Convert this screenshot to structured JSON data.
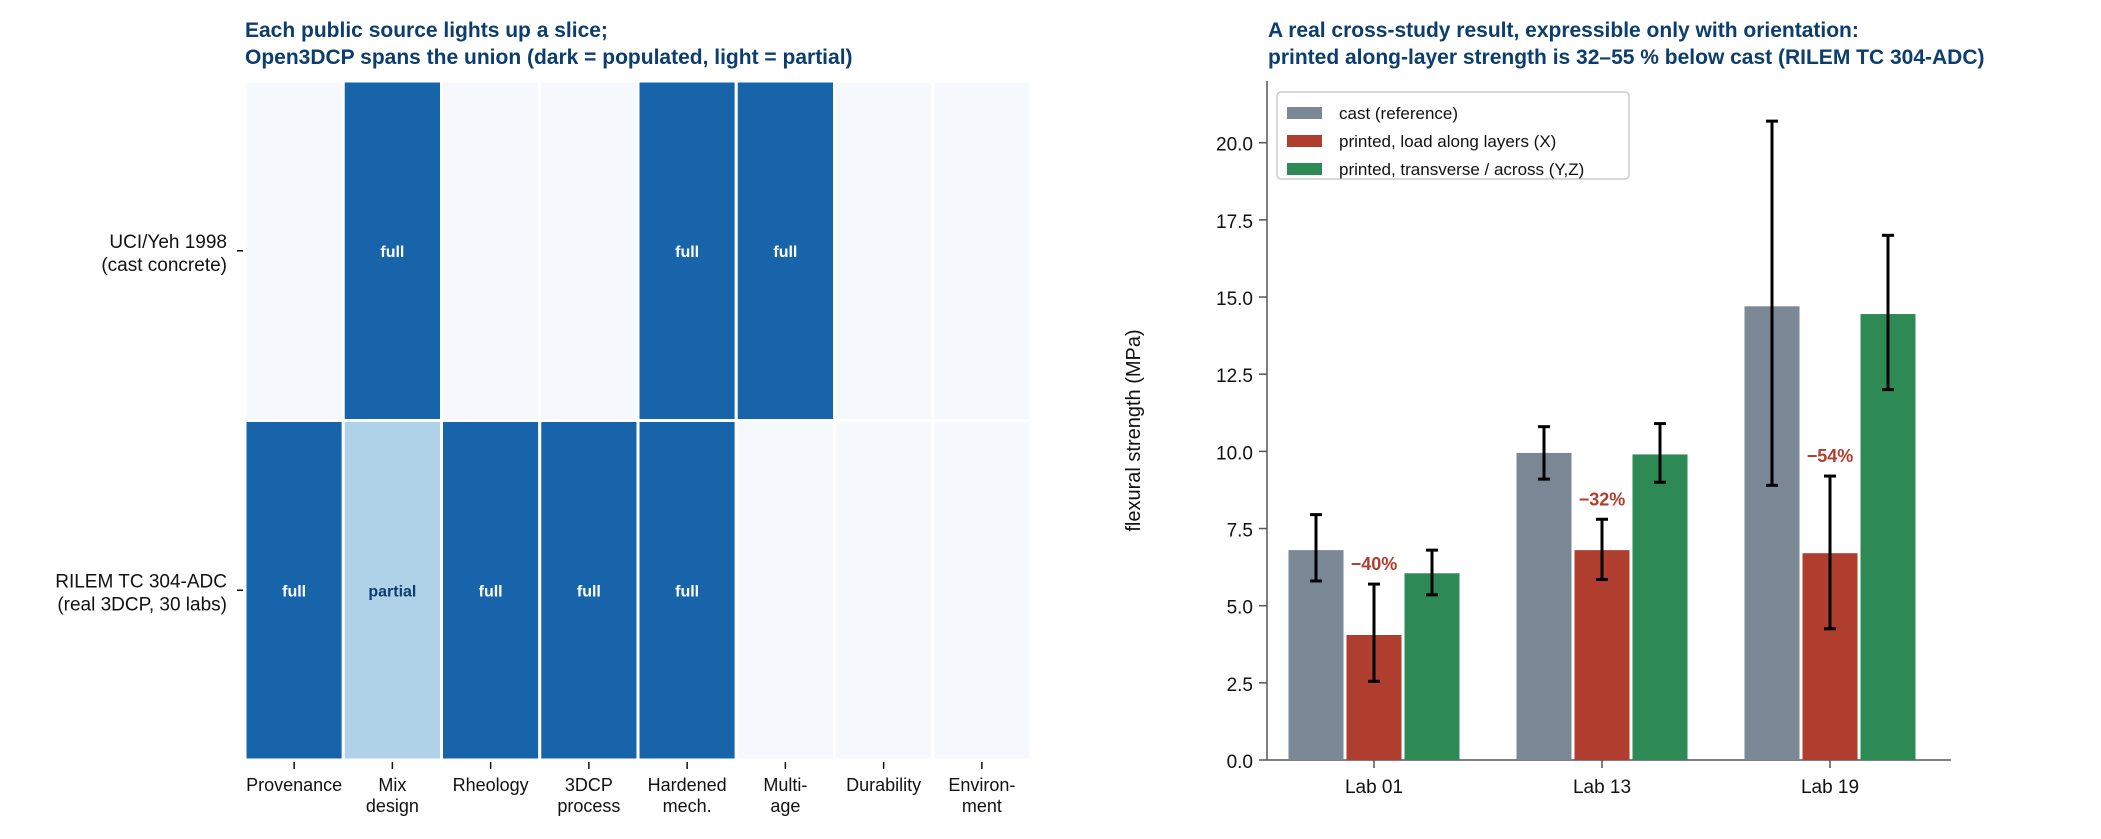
{
  "chart_data": [
    {
      "type": "heatmap",
      "title_lines": [
        "Each public source lights up a slice;",
        "Open3DCP spans the union (dark = populated, light = partial)"
      ],
      "columns": [
        [
          "Provenance"
        ],
        [
          "Mix",
          "design"
        ],
        [
          "Rheology"
        ],
        [
          "3DCP",
          "process"
        ],
        [
          "Hardened",
          "mech."
        ],
        [
          "Multi-",
          "age"
        ],
        [
          "Durability"
        ],
        [
          "Environ-",
          "ment"
        ]
      ],
      "rows": [
        {
          "label": [
            "UCI/Yeh 1998",
            "(cast concrete)"
          ],
          "cells": [
            "",
            "full",
            "",
            "",
            "full",
            "full",
            "",
            ""
          ]
        },
        {
          "label": [
            "RILEM TC 304-ADC",
            "(real 3DCP, 30 labs)"
          ],
          "cells": [
            "full",
            "partial",
            "full",
            "full",
            "full",
            "",
            "",
            ""
          ]
        }
      ],
      "colors": {
        "full": "#1764ab",
        "partial": "#b0d2e8",
        "empty": "#f5f9fe",
        "full_text": "#ffffff",
        "partial_text": "#0b3d6e"
      }
    },
    {
      "type": "bar",
      "title_lines": [
        "A real cross-study result, expressible only with orientation:",
        "printed along-layer strength is 32–55 % below cast (RILEM TC 304-ADC)"
      ],
      "ylabel": "flexural strength (MPa)",
      "ylim": [
        0,
        22
      ],
      "yticks": [
        "0.0",
        "2.5",
        "5.0",
        "7.5",
        "10.0",
        "12.5",
        "15.0",
        "17.5",
        "20.0"
      ],
      "categories": [
        "Lab 01",
        "Lab 13",
        "Lab 19"
      ],
      "series": [
        {
          "name": "cast (reference)",
          "color": "#7a8896",
          "values": [
            6.8,
            9.95,
            14.7
          ],
          "err_low": [
            5.8,
            9.1,
            8.9
          ],
          "err_high": [
            7.95,
            10.8,
            20.7
          ]
        },
        {
          "name": "printed, load along layers (X)",
          "color": "#b03e2e",
          "values": [
            4.05,
            6.8,
            6.7
          ],
          "err_low": [
            2.55,
            5.85,
            4.25
          ],
          "err_high": [
            5.7,
            7.8,
            9.2
          ]
        },
        {
          "name": "printed, transverse / across (Y,Z)",
          "color": "#2d8a55",
          "values": [
            6.05,
            9.9,
            14.45
          ],
          "err_low": [
            5.35,
            9.0,
            12.0
          ],
          "err_high": [
            6.8,
            10.9,
            17.0
          ]
        }
      ],
      "annotations": [
        "−40%",
        "−32%",
        "−54%"
      ],
      "annotation_color": "#b03e2e",
      "legend_position": "upper-left",
      "grid": false
    }
  ]
}
